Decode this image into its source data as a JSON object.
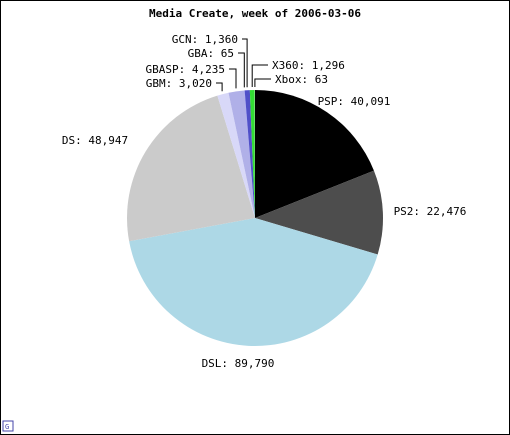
{
  "chart_data": {
    "type": "pie",
    "title": "Media Create, week of 2006-03-06",
    "slices": [
      {
        "label": "PSP",
        "value": 40091,
        "color": "#000000"
      },
      {
        "label": "PS2",
        "value": 22476,
        "color": "#4d4d4d"
      },
      {
        "label": "DSL",
        "value": 89790,
        "color": "#add8e6"
      },
      {
        "label": "DS",
        "value": 48947,
        "color": "#cbcbcb"
      },
      {
        "label": "GBM",
        "value": 3020,
        "color": "#d8d8f8"
      },
      {
        "label": "GBASP",
        "value": 4235,
        "color": "#b0b0e8"
      },
      {
        "label": "GBA",
        "value": 65,
        "color": "#8080ff"
      },
      {
        "label": "GCN",
        "value": 1360,
        "color": "#5050c8"
      },
      {
        "label": "X360",
        "value": 1296,
        "color": "#33dd33"
      },
      {
        "label": "Xbox",
        "value": 63,
        "color": "#dddddd"
      }
    ],
    "labels": [
      {
        "slice": "PSP",
        "text": "PSP: 40,091"
      },
      {
        "slice": "PS2",
        "text": "PS2: 22,476"
      },
      {
        "slice": "DSL",
        "text": "DSL: 89,790"
      },
      {
        "slice": "DS",
        "text": "DS: 48,947"
      },
      {
        "slice": "GBM",
        "text": "GBM: 3,020"
      },
      {
        "slice": "GBASP",
        "text": "GBASP: 4,235"
      },
      {
        "slice": "GBA",
        "text": "GBA: 65"
      },
      {
        "slice": "GCN",
        "text": "GCN: 1,360"
      },
      {
        "slice": "X360",
        "text": "X360: 1,296"
      },
      {
        "slice": "Xbox",
        "text": "Xbox: 63"
      }
    ]
  },
  "watermark": "G"
}
